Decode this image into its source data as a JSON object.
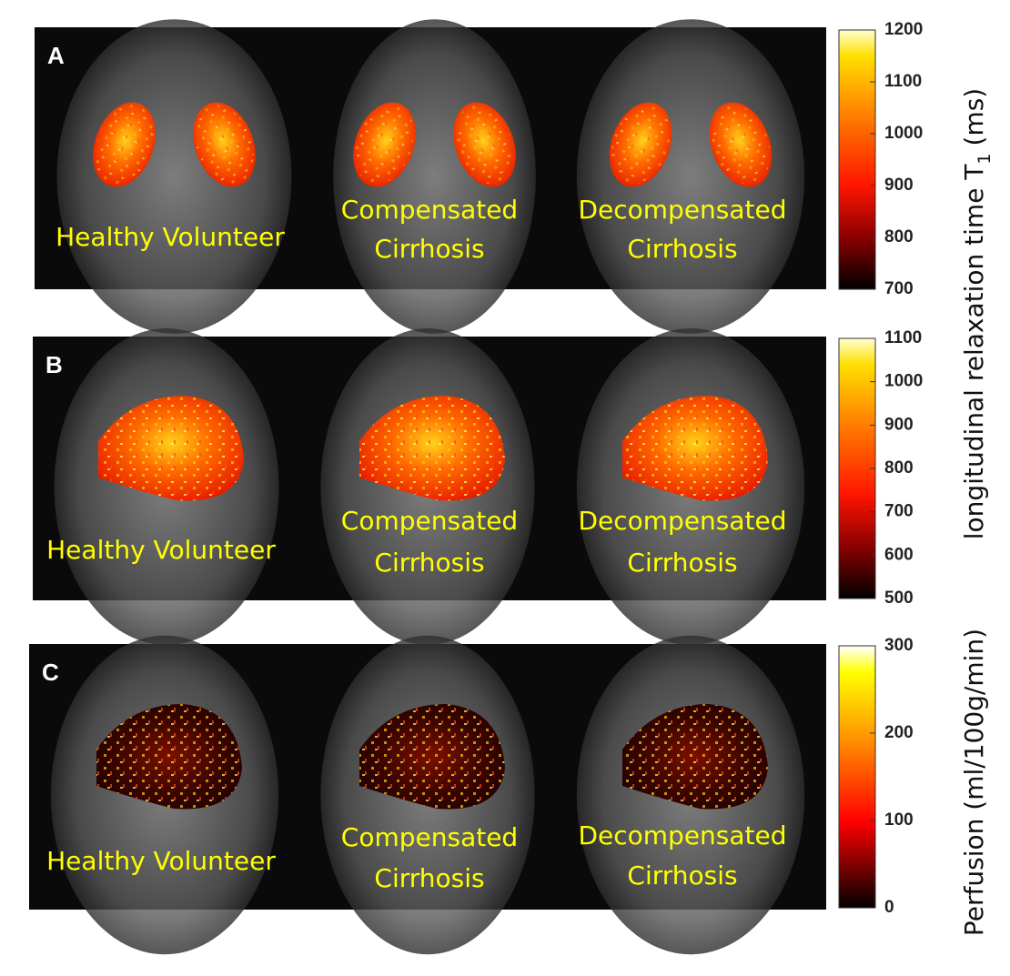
{
  "panels": [
    {
      "label": "A",
      "images": [
        {
          "caption": [
            "Healthy Volunteer"
          ]
        },
        {
          "caption": [
            "Compensated",
            "Cirrhosis"
          ]
        },
        {
          "caption": [
            "Decompensated",
            "Cirrhosis"
          ]
        }
      ],
      "colorbar": {
        "ticks": [
          700,
          800,
          900,
          1000,
          1100,
          1200
        ]
      }
    },
    {
      "label": "B",
      "images": [
        {
          "caption": [
            "Healthy Volunteer"
          ]
        },
        {
          "caption": [
            "Compensated",
            "Cirrhosis"
          ]
        },
        {
          "caption": [
            "Decompensated",
            "Cirrhosis"
          ]
        }
      ],
      "colorbar": {
        "ticks": [
          500,
          600,
          700,
          800,
          900,
          1000,
          1100
        ]
      }
    },
    {
      "label": "C",
      "images": [
        {
          "caption": [
            "Healthy Volunteer"
          ]
        },
        {
          "caption": [
            "Compensated",
            "Cirrhosis"
          ]
        },
        {
          "caption": [
            "Decompensated",
            "Cirrhosis"
          ]
        }
      ],
      "colorbar": {
        "ticks": [
          0,
          100,
          200,
          300
        ]
      }
    }
  ],
  "t1_colorbar_label": {
    "text": "longitudinal relaxation time T",
    "subscript": "1",
    "unit": "(ms)"
  },
  "perfusion_colorbar_label": "Perfusion (ml/100g/min)"
}
